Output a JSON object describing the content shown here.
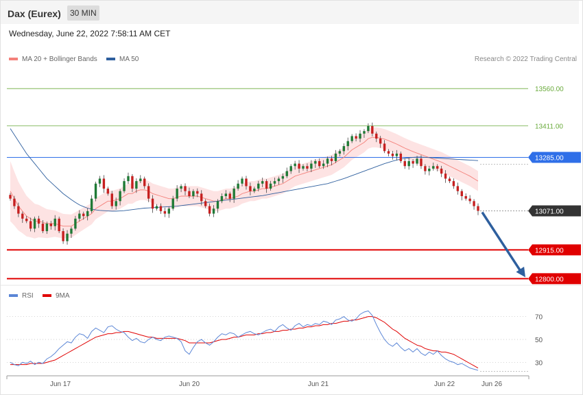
{
  "header": {
    "instrument": "Dax (Eurex)",
    "interval": "30 MIN"
  },
  "timestamp": "Wednesday, June 22, 2022 7:58:11 AM CET",
  "legend": {
    "main": [
      {
        "label": "MA 20 + Bollinger Bands",
        "color": "#f4807a"
      },
      {
        "label": "MA 50",
        "color": "#2e5f9e"
      }
    ],
    "rsi": [
      {
        "label": "RSI",
        "color": "#5b86d6"
      },
      {
        "label": "9MA",
        "color": "#e00000"
      }
    ]
  },
  "copyright": "Research © 2022 Trading Central",
  "chart_data": [
    {
      "type": "line",
      "subtype": "candlestick",
      "ylim": [
        12790,
        13640
      ],
      "x_tick_labels": [
        "Jun 17",
        "Jun 20",
        "Jun 21",
        "Jun 22",
        "Jun 26"
      ],
      "levels": [
        {
          "value": 13560,
          "label": "13560.00",
          "color": "#6aab3c",
          "style": "thin"
        },
        {
          "value": 13411,
          "label": "13411.00",
          "color": "#6aab3c",
          "style": "thin"
        },
        {
          "value": 13285,
          "label": "13285.00",
          "color": "#2f6fe8",
          "style": "badge"
        },
        {
          "value": 13071,
          "label": "13071.00",
          "color": "#333333",
          "style": "last-price"
        },
        {
          "value": 12915,
          "label": "12915.00",
          "color": "#e00000",
          "style": "badge"
        },
        {
          "value": 12800,
          "label": "12800.00",
          "color": "#e00000",
          "style": "badge"
        }
      ],
      "close": [
        13120,
        13090,
        13060,
        13040,
        13030,
        13000,
        13040,
        13020,
        12990,
        13020,
        13010,
        13040,
        12990,
        12950,
        12980,
        13000,
        13040,
        13060,
        13050,
        13070,
        13120,
        13180,
        13200,
        13160,
        13140,
        13090,
        13110,
        13150,
        13190,
        13210,
        13160,
        13190,
        13200,
        13170,
        13120,
        13080,
        13090,
        13070,
        13060,
        13080,
        13120,
        13160,
        13170,
        13150,
        13130,
        13150,
        13140,
        13110,
        13090,
        13060,
        13080,
        13110,
        13130,
        13140,
        13120,
        13160,
        13180,
        13200,
        13170,
        13150,
        13160,
        13180,
        13190,
        13160,
        13180,
        13190,
        13200,
        13210,
        13230,
        13250,
        13260,
        13240,
        13250,
        13240,
        13260,
        13270,
        13250,
        13260,
        13280,
        13270,
        13300,
        13310,
        13330,
        13350,
        13370,
        13360,
        13380,
        13390,
        13410,
        13380,
        13360,
        13340,
        13310,
        13300,
        13290,
        13300,
        13270,
        13250,
        13270,
        13260,
        13280,
        13250,
        13230,
        13240,
        13250,
        13240,
        13220,
        13200,
        13190,
        13170,
        13150,
        13130,
        13120,
        13110,
        13090,
        13071
      ],
      "ma20": [
        13150,
        13120,
        13090,
        13070,
        13050,
        13040,
        13030,
        13030,
        13025,
        13020,
        13020,
        13020,
        13015,
        13010,
        13010,
        13010,
        13020,
        13030,
        13040,
        13050,
        13060,
        13080,
        13090,
        13100,
        13110,
        13110,
        13115,
        13120,
        13130,
        13140,
        13140,
        13150,
        13155,
        13155,
        13150,
        13140,
        13135,
        13130,
        13125,
        13120,
        13120,
        13125,
        13130,
        13130,
        13130,
        13130,
        13130,
        13125,
        13120,
        13115,
        13110,
        13110,
        13115,
        13120,
        13120,
        13125,
        13130,
        13140,
        13145,
        13150,
        13150,
        13155,
        13160,
        13160,
        13165,
        13170,
        13175,
        13180,
        13190,
        13200,
        13210,
        13215,
        13220,
        13225,
        13230,
        13235,
        13240,
        13245,
        13250,
        13255,
        13265,
        13275,
        13285,
        13300,
        13315,
        13325,
        13335,
        13345,
        13360,
        13365,
        13365,
        13362,
        13358,
        13352,
        13345,
        13338,
        13330,
        13322,
        13315,
        13308,
        13302,
        13296,
        13290,
        13284,
        13278,
        13272,
        13266,
        13258,
        13250,
        13242,
        13234,
        13226,
        13218,
        13210,
        13200,
        13190
      ],
      "ma50": [
        13400,
        13375,
        13350,
        13325,
        13300,
        13280,
        13260,
        13240,
        13220,
        13200,
        13185,
        13170,
        13155,
        13140,
        13128,
        13116,
        13105,
        13095,
        13088,
        13082,
        13078,
        13075,
        13073,
        13072,
        13071,
        13070,
        13070,
        13071,
        13072,
        13074,
        13076,
        13078,
        13080,
        13082,
        13083,
        13084,
        13085,
        13086,
        13087,
        13088,
        13089,
        13090,
        13092,
        13094,
        13096,
        13098,
        13100,
        13102,
        13104,
        13106,
        13108,
        13110,
        13112,
        13114,
        13116,
        13118,
        13120,
        13122,
        13124,
        13126,
        13128,
        13130,
        13132,
        13135,
        13138,
        13141,
        13144,
        13147,
        13150,
        13153,
        13156,
        13159,
        13162,
        13165,
        13168,
        13171,
        13174,
        13177,
        13180,
        13185,
        13190,
        13195,
        13200,
        13206,
        13212,
        13218,
        13224,
        13230,
        13236,
        13242,
        13248,
        13254,
        13260,
        13265,
        13270,
        13274,
        13278,
        13281,
        13283,
        13285,
        13286,
        13286,
        13285,
        13284,
        13283,
        13282,
        13281,
        13280,
        13279,
        13278,
        13277,
        13276,
        13275,
        13274,
        13273,
        13272
      ]
    },
    {
      "type": "line",
      "ylim": [
        20,
        80
      ],
      "y_tick_labels": [
        "70",
        "50",
        "30"
      ],
      "series": [
        {
          "name": "RSI",
          "values": [
            30,
            28,
            27,
            30,
            29,
            31,
            28,
            30,
            29,
            33,
            35,
            38,
            42,
            45,
            48,
            47,
            52,
            55,
            54,
            51,
            57,
            60,
            58,
            56,
            61,
            62,
            59,
            57,
            56,
            52,
            49,
            51,
            48,
            47,
            50,
            52,
            50,
            49,
            52,
            53,
            52,
            51,
            48,
            40,
            37,
            43,
            48,
            50,
            47,
            45,
            48,
            52,
            55,
            54,
            56,
            55,
            52,
            54,
            56,
            57,
            55,
            54,
            56,
            58,
            59,
            57,
            61,
            63,
            60,
            58,
            62,
            64,
            61,
            63,
            62,
            64,
            63,
            66,
            65,
            63,
            67,
            68,
            70,
            67,
            66,
            68,
            72,
            74,
            75,
            71,
            63,
            56,
            50,
            46,
            44,
            47,
            43,
            40,
            42,
            39,
            42,
            38,
            36,
            39,
            37,
            40,
            36,
            33,
            31,
            30,
            28,
            29,
            27,
            25,
            24,
            23
          ]
        },
        {
          "name": "9MA",
          "values": [
            28,
            28,
            28,
            28,
            28,
            29,
            29,
            29,
            29,
            30,
            31,
            32,
            34,
            36,
            38,
            40,
            42,
            44,
            46,
            48,
            50,
            52,
            53,
            54,
            55,
            55,
            56,
            56,
            57,
            57,
            56,
            55,
            54,
            53,
            52,
            52,
            51,
            51,
            51,
            51,
            51,
            51,
            50,
            49,
            47,
            47,
            47,
            47,
            47,
            47,
            48,
            49,
            50,
            50,
            51,
            52,
            52,
            53,
            54,
            54,
            54,
            55,
            55,
            56,
            56,
            57,
            57,
            58,
            58,
            59,
            59,
            60,
            60,
            61,
            61,
            62,
            62,
            63,
            63,
            64,
            64,
            65,
            66,
            66,
            67,
            67,
            68,
            69,
            70,
            70,
            69,
            67,
            65,
            62,
            59,
            57,
            54,
            51,
            49,
            47,
            45,
            44,
            42,
            41,
            40,
            40,
            39,
            39,
            38,
            37,
            35,
            33,
            31,
            29,
            27,
            25
          ]
        }
      ]
    }
  ]
}
